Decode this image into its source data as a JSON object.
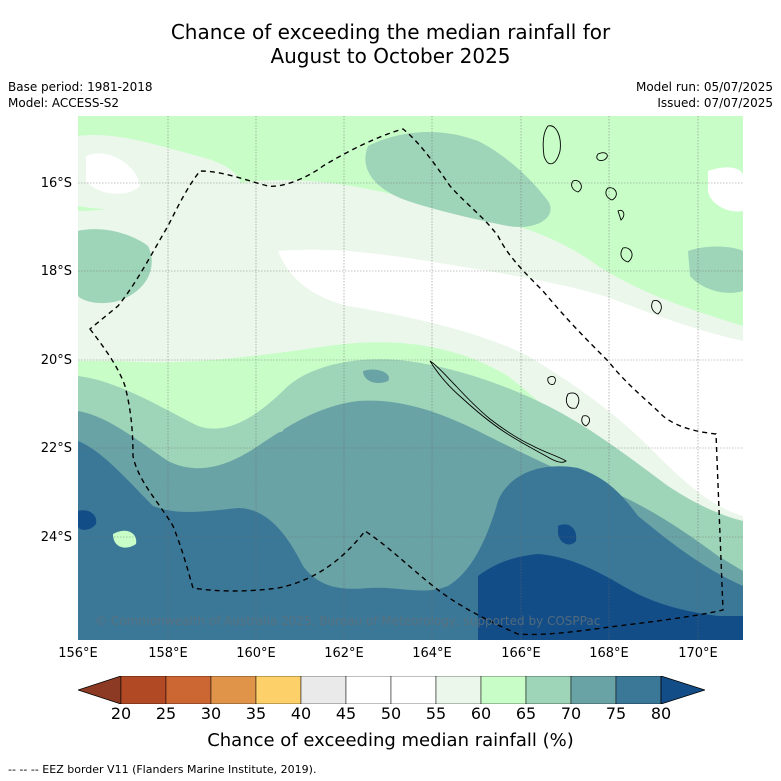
{
  "title_line1": "Chance of exceeding the median rainfall for",
  "title_line2": "August to October 2025",
  "info": {
    "base_period": "Base period: 1981-2018",
    "model": "Model: ACCESS-S2",
    "model_run": "Model run: 05/07/2025",
    "issued": "Issued: 07/07/2025"
  },
  "copyright": "© Commonwealth of Australia 2025, Bureau of Meteorology, supported by COSPPac",
  "lat_labels": [
    "16°S",
    "18°S",
    "20°S",
    "22°S",
    "24°S"
  ],
  "lon_labels": [
    "156°E",
    "158°E",
    "160°E",
    "162°E",
    "164°E",
    "166°E",
    "168°E",
    "170°E"
  ],
  "colorbar": {
    "ticks": [
      "20",
      "25",
      "30",
      "35",
      "40",
      "45",
      "50",
      "55",
      "60",
      "65",
      "70",
      "75",
      "80"
    ],
    "colors": [
      "#8c3a24",
      "#b14a24",
      "#cc6633",
      "#e0944a",
      "#fdd06a",
      "#eaeaea",
      "#ffffff",
      "#ffffff",
      "#eaf7ea",
      "#c8fdc8",
      "#9ed4b8",
      "#6aa3a6",
      "#3b7898",
      "#134d87"
    ],
    "label": "Chance of exceeding median rainfall (%)"
  },
  "footnote": "-- -- -- EEZ border V11 (Flanders Marine Institute, 2019)."
}
